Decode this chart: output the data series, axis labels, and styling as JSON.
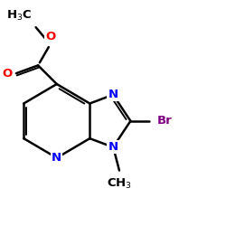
{
  "bg_color": "#ffffff",
  "bond_color": "#000000",
  "N_color": "#0000ff",
  "O_color": "#ff0000",
  "Br_color": "#800080",
  "bond_width": 1.8,
  "font_size": 9.5,
  "figsize": [
    2.5,
    2.5
  ],
  "dpi": 100,
  "xlim": [
    -1.5,
    5.5
  ],
  "ylim": [
    -2.2,
    3.5
  ]
}
